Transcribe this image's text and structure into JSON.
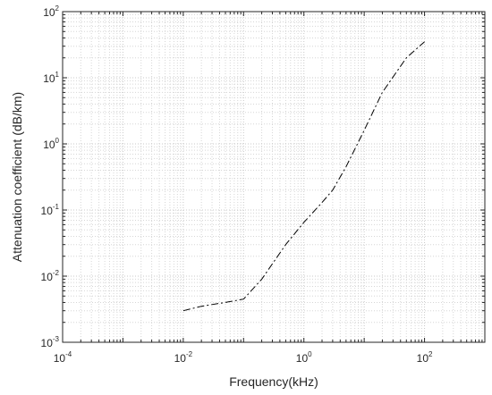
{
  "chart_data": {
    "type": "line",
    "xlabel": "Frequency(kHz)",
    "ylabel": "Attenuation coefficient (dB/km)",
    "xscale": "log",
    "yscale": "log",
    "xlim": [
      0.0001,
      1000
    ],
    "ylim": [
      0.001,
      100
    ],
    "grid": true,
    "grid_style": "dotted",
    "line_style": "dash-dot",
    "line_color": "#000000",
    "x_ticks": [
      {
        "base": "10",
        "exp": "-4",
        "value": 0.0001
      },
      {
        "base": "10",
        "exp": "-2",
        "value": 0.01
      },
      {
        "base": "10",
        "exp": "0",
        "value": 1
      },
      {
        "base": "10",
        "exp": "2",
        "value": 100
      }
    ],
    "y_ticks": [
      {
        "base": "10",
        "exp": "-3",
        "value": 0.001
      },
      {
        "base": "10",
        "exp": "-2",
        "value": 0.01
      },
      {
        "base": "10",
        "exp": "-1",
        "value": 0.1
      },
      {
        "base": "10",
        "exp": "0",
        "value": 1
      },
      {
        "base": "10",
        "exp": "1",
        "value": 10
      },
      {
        "base": "10",
        "exp": "2",
        "value": 100
      }
    ],
    "series": [
      {
        "x": [
          0.01,
          0.02,
          0.05,
          0.1,
          0.2,
          0.5,
          1,
          2,
          3,
          5,
          10,
          20,
          50,
          100
        ],
        "y": [
          0.003,
          0.0035,
          0.004,
          0.0045,
          0.009,
          0.03,
          0.065,
          0.13,
          0.2,
          0.45,
          1.6,
          6,
          20,
          35
        ]
      }
    ]
  }
}
